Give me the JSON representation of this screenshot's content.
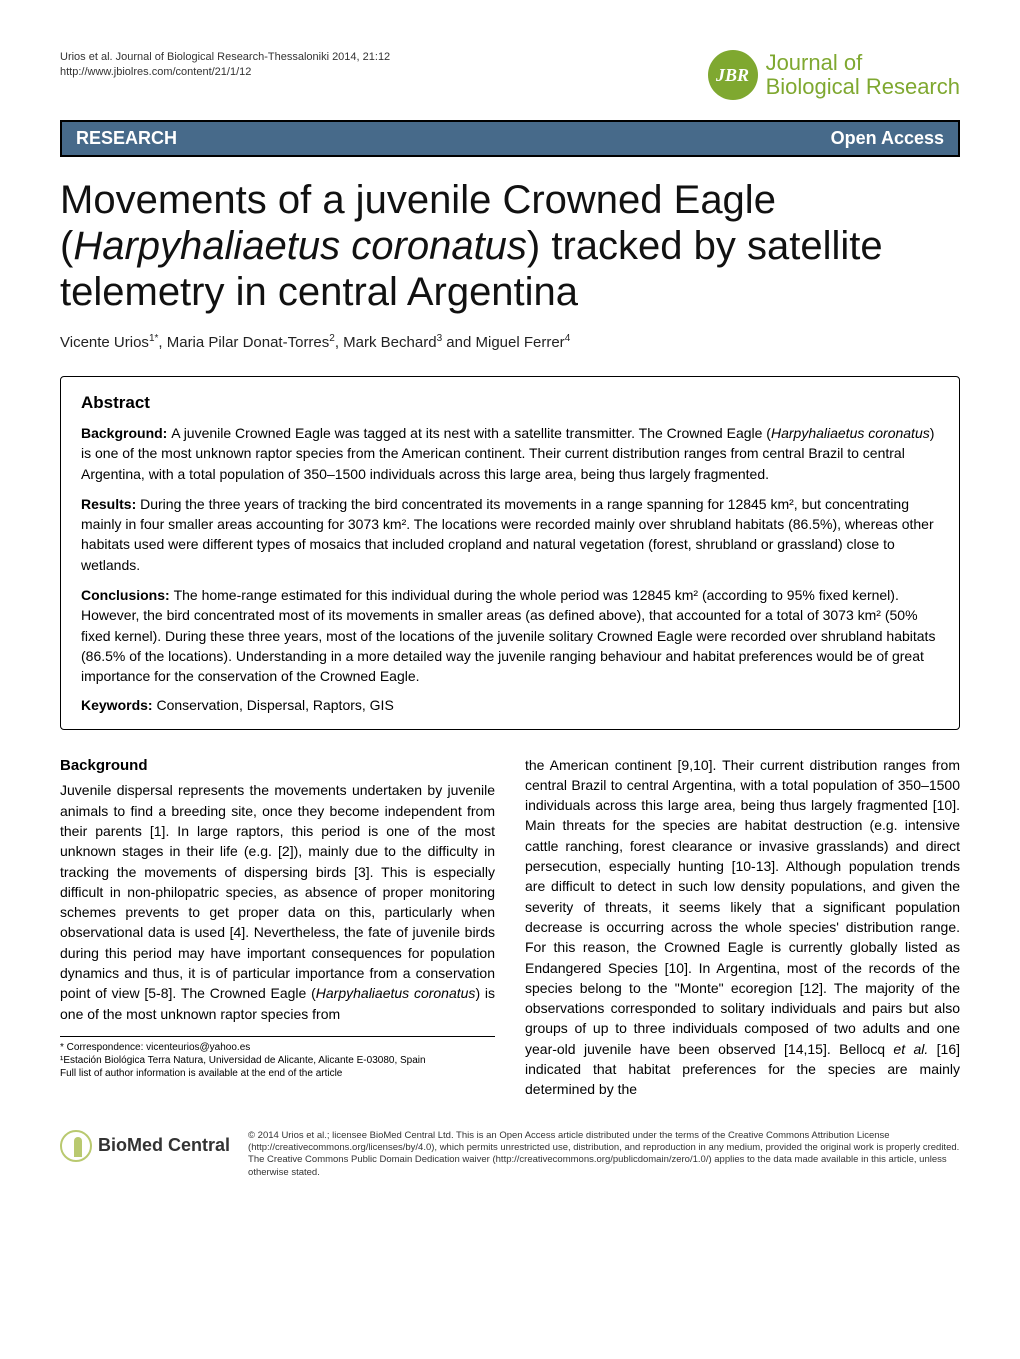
{
  "header": {
    "citation": "Urios et al. Journal of Biological Research-Thessaloniki 2014, 21:12",
    "url": "http://www.jbiolres.com/content/21/1/12",
    "journal_badge": "JBR",
    "journal_name_line1": "Journal of",
    "journal_name_line2": "Biological Research"
  },
  "banner": {
    "left": "RESEARCH",
    "right": "Open Access",
    "background_color": "#476a8a",
    "text_color": "#ffffff"
  },
  "title": {
    "line1": "Movements of a juvenile Crowned Eagle",
    "line2_prefix": "(",
    "line2_italic": "Harpyhaliaetus coronatus",
    "line2_suffix": ") tracked by satellite",
    "line3": "telemetry in central Argentina"
  },
  "authors": {
    "a1": "Vicente Urios",
    "s1": "1*",
    "a2": ", Maria Pilar Donat-Torres",
    "s2": "2",
    "a3": ", Mark Bechard",
    "s3": "3",
    "a4": " and Miguel Ferrer",
    "s4": "4"
  },
  "abstract": {
    "heading": "Abstract",
    "background_label": "Background: ",
    "background_text": "A juvenile Crowned Eagle was tagged at its nest with a satellite transmitter. The Crowned Eagle (",
    "background_italic": "Harpyhaliaetus coronatus",
    "background_text2": ") is one of the most unknown raptor species from the American continent. Their current distribution ranges from central Brazil to central Argentina, with a total population of 350–1500 individuals across this large area, being thus largely fragmented.",
    "results_label": "Results: ",
    "results_text": "During the three years of tracking the bird concentrated its movements in a range spanning for 12845 km², but concentrating mainly in four smaller areas accounting for 3073 km². The locations were recorded mainly over shrubland habitats (86.5%), whereas other habitats used were different types of mosaics that included cropland and natural vegetation (forest, shrubland or grassland) close to wetlands.",
    "conclusions_label": "Conclusions: ",
    "conclusions_text": "The home-range estimated for this individual during the whole period was 12845 km² (according to 95% fixed kernel). However, the bird concentrated most of its movements in smaller areas (as defined above), that accounted for a total of 3073 km² (50% fixed kernel). During these three years, most of the locations of the juvenile solitary Crowned Eagle were recorded over shrubland habitats (86.5% of the locations). Understanding in a more detailed way the juvenile ranging behaviour and habitat preferences would be of great importance for the conservation of the Crowned Eagle.",
    "keywords_label": "Keywords: ",
    "keywords_text": "Conservation, Dispersal, Raptors, GIS"
  },
  "body": {
    "section_heading": "Background",
    "col1": "Juvenile dispersal represents the movements undertaken by juvenile animals to find a breeding site, once they become independent from their parents [1]. In large raptors, this period is one of the most unknown stages in their life (e.g. [2]), mainly due to the difficulty in tracking the movements of dispersing birds [3]. This is especially difficult in non-philopatric species, as absence of proper monitoring schemes prevents to get proper data on this, particularly when observational data is used [4]. Nevertheless, the fate of juvenile birds during this period may have important consequences for population dynamics and thus, it is of particular importance from a conservation point of view [5-8]. The Crowned Eagle (",
    "col1_italic": "Harpyhaliaetus coronatus",
    "col1_suffix": ") is one of the most unknown raptor species from",
    "col2_part1": "the American continent [9,10]. Their current distribution ranges from central Brazil to central Argentina, with a total population of 350–1500 individuals across this large area, being thus largely fragmented [10]. Main threats for the species are habitat destruction (e.g. intensive cattle ranching, forest clearance or invasive grasslands) and direct persecution, especially hunting [10-13]. Although population trends are difficult to detect in such low density populations, and given the severity of threats, it seems likely that a significant population decrease is occurring across the whole species' distribution range. For this reason, the Crowned Eagle is currently globally listed as Endangered Species [10]. In Argentina, most of the records of the species belong to the \"Monte\" ecoregion [12]. The majority of the observations corresponded to solitary individuals and pairs but also groups of up to three individuals composed of two adults and one year-old juvenile have been observed [14,15]. Bellocq ",
    "col2_italic": "et al.",
    "col2_part2": " [16] indicated that habitat preferences for the species are mainly determined by the"
  },
  "footnotes": {
    "corr": "* Correspondence: vicenteurios@yahoo.es",
    "aff1": "¹Estación Biológica Terra Natura, Universidad de Alicante, Alicante E-03080, Spain",
    "full": "Full list of author information is available at the end of the article"
  },
  "footer": {
    "bmc_name": "BioMed Central",
    "license": "© 2014 Urios et al.; licensee BioMed Central Ltd. This is an Open Access article distributed under the terms of the Creative Commons Attribution License (http://creativecommons.org/licenses/by/4.0), which permits unrestricted use, distribution, and reproduction in any medium, provided the original work is properly credited. The Creative Commons Public Domain Dedication waiver (http://creativecommons.org/publicdomain/zero/1.0/) applies to the data made available in this article, unless otherwise stated."
  },
  "colors": {
    "journal_green": "#7fa830",
    "banner_blue": "#476a8a",
    "bmc_green": "#b9c96f"
  }
}
